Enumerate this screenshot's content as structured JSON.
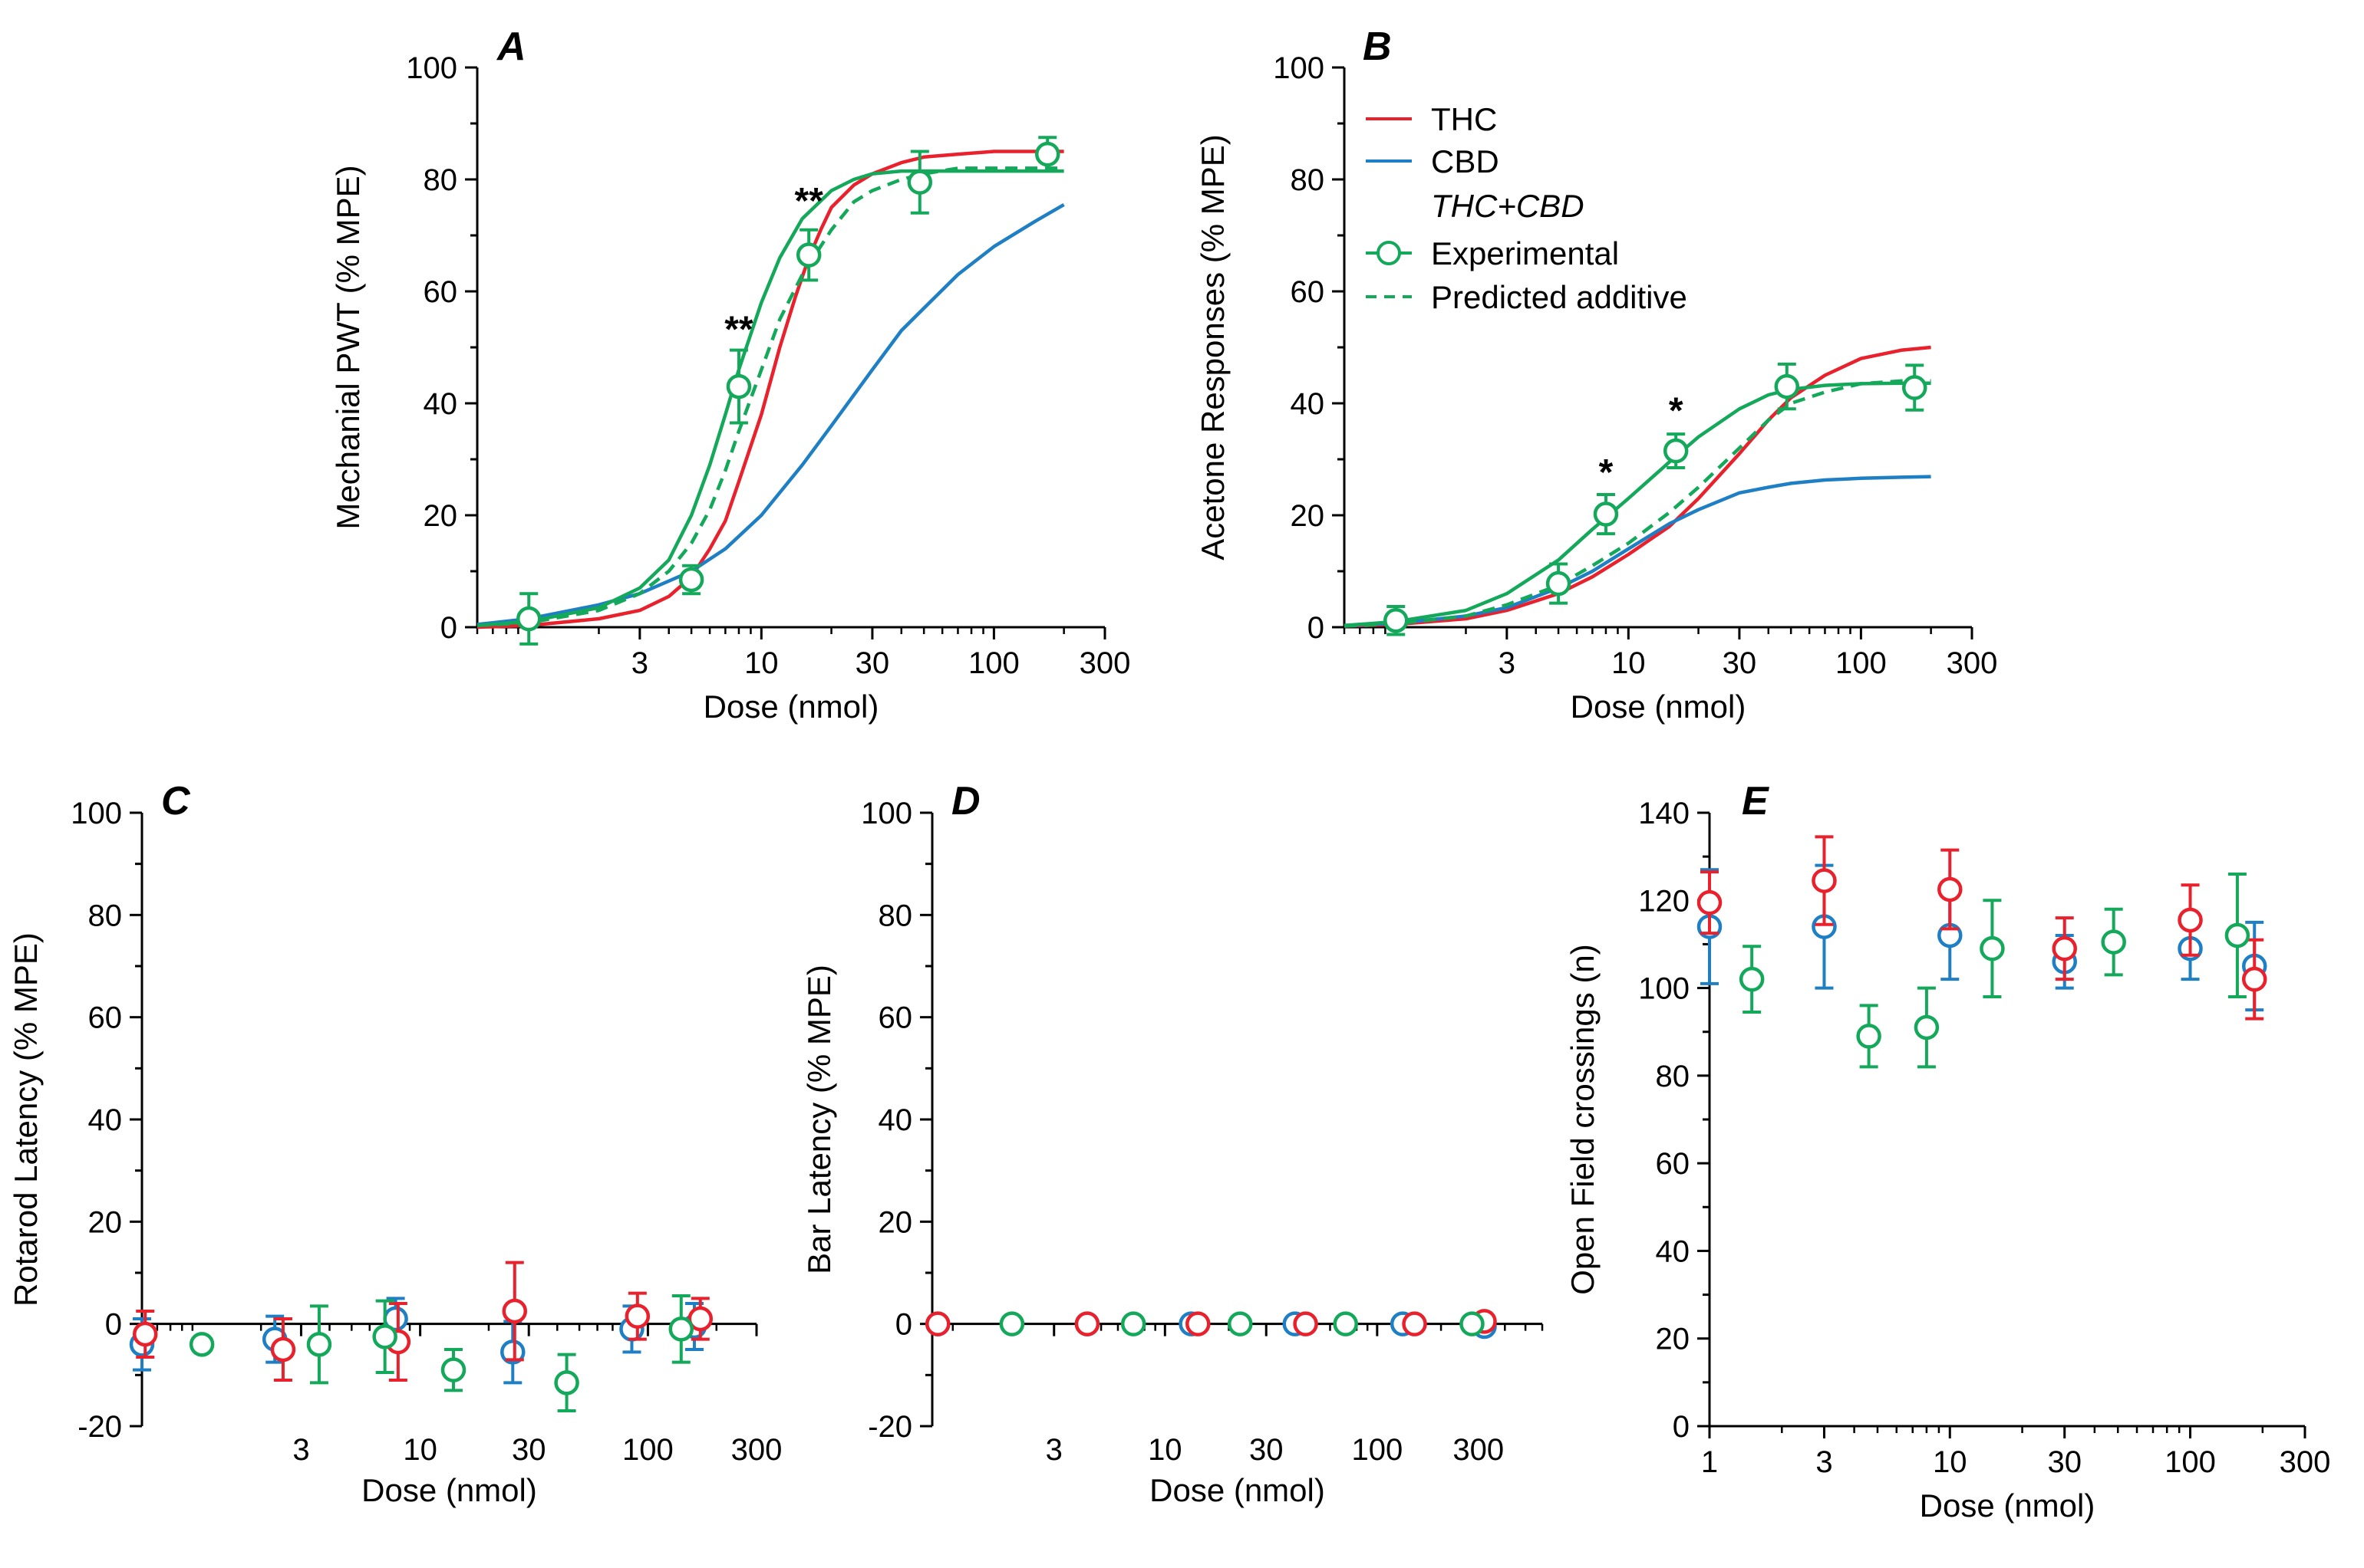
{
  "colors": {
    "THC": "#e8212c",
    "CBD": "#1f7fc4",
    "combo": "#14a85a",
    "axis": "#000000"
  },
  "legend": {
    "thc": "THC",
    "cbd": "CBD",
    "combo_title": "THC+CBD",
    "experimental": "Experimental",
    "predicted": "Predicted additive"
  },
  "chart_data": [
    {
      "id": "A",
      "type": "line",
      "panel_label": "A",
      "xlabel": "Dose (nmol)",
      "ylabel": "Mechanial PWT (% MPE)",
      "x_scale": "log",
      "xlim": [
        0.6,
        300
      ],
      "ylim": [
        0,
        100
      ],
      "x_ticks": [
        3,
        10,
        30,
        100,
        300
      ],
      "y_ticks": [
        0,
        20,
        40,
        60,
        80,
        100
      ],
      "curves": [
        {
          "name": "THC",
          "color_key": "THC",
          "style": "solid",
          "x": [
            0.6,
            1,
            2,
            3,
            4,
            5,
            6,
            7,
            8,
            10,
            12,
            14,
            16,
            18,
            20,
            25,
            30,
            40,
            50,
            70,
            100,
            150,
            200
          ],
          "y": [
            0,
            0.3,
            1.5,
            3,
            5.5,
            9,
            14,
            19,
            26,
            38,
            50,
            59,
            66,
            71,
            75,
            79,
            81,
            83,
            84,
            84.5,
            85,
            85,
            85
          ]
        },
        {
          "name": "CBD",
          "color_key": "CBD",
          "style": "solid",
          "x": [
            0.6,
            1,
            2,
            3,
            5,
            7,
            10,
            15,
            20,
            30,
            40,
            50,
            70,
            100,
            150,
            200
          ],
          "y": [
            0.5,
            1.5,
            4,
            6,
            10,
            14,
            20,
            29,
            36,
            46,
            53,
            57,
            63,
            68,
            72.5,
            75.5
          ]
        },
        {
          "name": "Predicted additive",
          "color_key": "combo",
          "style": "dashed",
          "x": [
            0.6,
            1,
            2,
            3,
            4,
            5,
            6,
            7,
            8,
            10,
            12,
            15,
            20,
            25,
            30,
            40,
            50,
            70,
            100,
            150,
            200
          ],
          "y": [
            0.3,
            0.8,
            3,
            6,
            10,
            15,
            21,
            28,
            35,
            46,
            55,
            63,
            71,
            76,
            78,
            80,
            81,
            82,
            82,
            82,
            82
          ]
        },
        {
          "name": "Experimental fit",
          "color_key": "combo",
          "style": "solid",
          "x": [
            0.6,
            1,
            2,
            3,
            4,
            5,
            6,
            7,
            8,
            10,
            12,
            15,
            20,
            25,
            30,
            40,
            50,
            70,
            100,
            150,
            200
          ],
          "y": [
            0.3,
            1,
            3.5,
            7,
            12,
            20,
            29,
            38,
            46,
            58,
            66,
            73,
            78,
            80,
            81,
            81.5,
            81.5,
            81.5,
            81.5,
            81.5,
            81.5
          ]
        }
      ],
      "series_points": [
        {
          "name": "Experimental",
          "color_key": "combo",
          "x": [
            1,
            5,
            8,
            16,
            48,
            170
          ],
          "y": [
            1.5,
            8.5,
            43,
            66.5,
            79.5,
            84.5
          ],
          "err": [
            4.5,
            2.5,
            6.5,
            4.5,
            5.5,
            3
          ]
        }
      ],
      "annotations": [
        {
          "text": "**",
          "x": 8,
          "y": 51
        },
        {
          "text": "**",
          "x": 16,
          "y": 74
        }
      ]
    },
    {
      "id": "B",
      "type": "line",
      "panel_label": "B",
      "xlabel": "Dose (nmol)",
      "ylabel": "Acetone Responses (% MPE)",
      "x_scale": "log",
      "xlim": [
        0.6,
        300
      ],
      "ylim": [
        0,
        100
      ],
      "x_ticks": [
        3,
        10,
        30,
        100,
        300
      ],
      "y_ticks": [
        0,
        20,
        40,
        60,
        80,
        100
      ],
      "curves": [
        {
          "name": "THC",
          "color_key": "THC",
          "style": "solid",
          "x": [
            0.6,
            1,
            2,
            3,
            5,
            7,
            10,
            15,
            20,
            30,
            40,
            50,
            70,
            100,
            150,
            200
          ],
          "y": [
            0.2,
            0.5,
            1.5,
            3,
            6,
            9,
            13,
            18,
            23,
            31,
            37,
            41,
            45,
            48,
            49.5,
            50
          ]
        },
        {
          "name": "CBD",
          "color_key": "CBD",
          "style": "solid",
          "x": [
            0.6,
            1,
            2,
            3,
            5,
            7,
            10,
            15,
            20,
            30,
            40,
            50,
            70,
            100,
            150,
            200
          ],
          "y": [
            0.3,
            0.7,
            2,
            3.5,
            7,
            10,
            14,
            18.5,
            21,
            24,
            25,
            25.7,
            26.3,
            26.6,
            26.8,
            26.9
          ]
        },
        {
          "name": "Predicted additive",
          "color_key": "combo",
          "style": "dashed",
          "x": [
            0.6,
            1,
            2,
            3,
            5,
            7,
            10,
            15,
            20,
            30,
            40,
            50,
            70,
            100,
            150,
            200
          ],
          "y": [
            0.2,
            0.6,
            2,
            4,
            7.5,
            11,
            15,
            20.5,
            25,
            32,
            37,
            40,
            42,
            43.5,
            44,
            44
          ]
        },
        {
          "name": "Experimental fit",
          "color_key": "combo",
          "style": "solid",
          "x": [
            0.6,
            1,
            2,
            3,
            5,
            7,
            10,
            15,
            20,
            30,
            40,
            50,
            70,
            100,
            150,
            200
          ],
          "y": [
            0.3,
            1,
            3,
            6,
            12,
            17.5,
            23,
            29.5,
            34,
            39,
            41.5,
            42.5,
            43.2,
            43.5,
            43.6,
            43.6
          ]
        }
      ],
      "series_points": [
        {
          "name": "Experimental",
          "color_key": "combo",
          "x": [
            1,
            5,
            8,
            16,
            48,
            170
          ],
          "y": [
            1.2,
            7.8,
            20.2,
            31.5,
            43,
            42.8
          ],
          "err": [
            2.5,
            3.5,
            3.5,
            3,
            4,
            4
          ]
        }
      ],
      "annotations": [
        {
          "text": "*",
          "x": 8,
          "y": 25.5
        },
        {
          "text": "*",
          "x": 16,
          "y": 36.5
        }
      ]
    },
    {
      "id": "C",
      "type": "scatter",
      "panel_label": "C",
      "xlabel": "Dose (nmol)",
      "ylabel": "Rotarod Latency (% MPE)",
      "x_scale": "log",
      "xlim": [
        0.6,
        300
      ],
      "ylim": [
        -20,
        100
      ],
      "x_ticks": [
        3,
        10,
        30,
        100,
        300
      ],
      "y_ticks": [
        -20,
        0,
        20,
        40,
        60,
        80,
        100
      ],
      "series_points": [
        {
          "name": "CBD",
          "color_key": "CBD",
          "x": [
            0.6,
            2.3,
            7.8,
            25.5,
            85,
            160
          ],
          "y": [
            -4,
            -3,
            1,
            -5.5,
            -1,
            -0.5
          ],
          "err": [
            5,
            4.5,
            4,
            6,
            4.5,
            4.5
          ]
        },
        {
          "name": "THC",
          "color_key": "THC",
          "x": [
            0.62,
            2.5,
            8,
            26,
            90,
            170
          ],
          "y": [
            -2,
            -5,
            -3.5,
            2.5,
            1.5,
            1
          ],
          "err": [
            4.5,
            6,
            7.5,
            9.5,
            4.5,
            4
          ]
        },
        {
          "name": "THC+CBD",
          "color_key": "combo",
          "x": [
            1.1,
            3.6,
            7,
            14,
            44,
            140
          ],
          "y": [
            -4,
            -4,
            -2.5,
            -9,
            -11.5,
            -1
          ],
          "err": [
            0,
            7.5,
            7,
            4,
            5.5,
            6.5
          ]
        }
      ]
    },
    {
      "id": "D",
      "type": "scatter",
      "panel_label": "D",
      "xlabel": "Dose (nmol)",
      "ylabel": "Bar Latency (% MPE)",
      "x_scale": "log",
      "xlim": [
        0.8,
        600
      ],
      "ylim": [
        -20,
        100
      ],
      "x_ticks": [
        3,
        10,
        30,
        100,
        300
      ],
      "y_ticks": [
        -20,
        0,
        20,
        40,
        60,
        80,
        100
      ],
      "series_points": [
        {
          "name": "CBD",
          "color_key": "CBD",
          "x": [
            0.85,
            4.3,
            13.3,
            41,
            132,
            320
          ],
          "y": [
            0,
            0,
            0,
            0,
            0,
            -0.5
          ],
          "err": [
            0,
            0,
            0,
            0,
            0,
            0
          ]
        },
        {
          "name": "THC",
          "color_key": "THC",
          "x": [
            0.85,
            4.3,
            14.3,
            46,
            150,
            320
          ],
          "y": [
            0,
            0,
            0,
            0,
            0,
            0.5
          ],
          "err": [
            0,
            0,
            0,
            0,
            0,
            0
          ]
        },
        {
          "name": "THC+CBD",
          "color_key": "combo",
          "x": [
            1.9,
            7.1,
            22.6,
            71,
            280
          ],
          "y": [
            0,
            0,
            0,
            0,
            0
          ],
          "err": [
            0,
            0,
            0,
            0,
            0
          ]
        }
      ]
    },
    {
      "id": "E",
      "type": "scatter",
      "panel_label": "E",
      "xlabel": "Dose (nmol)",
      "ylabel": "Open Field crossings (n)",
      "x_scale": "log",
      "xlim": [
        1,
        300
      ],
      "ylim": [
        0,
        140
      ],
      "x_ticks": [
        1,
        3,
        10,
        30,
        100,
        300
      ],
      "y_ticks": [
        0,
        20,
        40,
        60,
        80,
        100,
        120,
        140
      ],
      "series_points": [
        {
          "name": "CBD",
          "color_key": "CBD",
          "x": [
            1,
            3,
            10,
            30,
            100,
            185
          ],
          "y": [
            114,
            114,
            112,
            106,
            109,
            105
          ],
          "err": [
            13,
            14,
            10,
            6,
            7,
            10
          ]
        },
        {
          "name": "THC",
          "color_key": "THC",
          "x": [
            1,
            3,
            10,
            30,
            100,
            185
          ],
          "y": [
            119.5,
            124.5,
            122.5,
            109,
            115.5,
            102
          ],
          "err": [
            7,
            10,
            9,
            7,
            8,
            9
          ]
        },
        {
          "name": "THC+CBD",
          "color_key": "combo",
          "x": [
            1.5,
            4.6,
            8,
            15,
            48,
            157
          ],
          "y": [
            102,
            89,
            91,
            109,
            110.5,
            112
          ],
          "err": [
            7.5,
            7,
            9,
            11,
            7.5,
            14
          ]
        }
      ]
    }
  ]
}
